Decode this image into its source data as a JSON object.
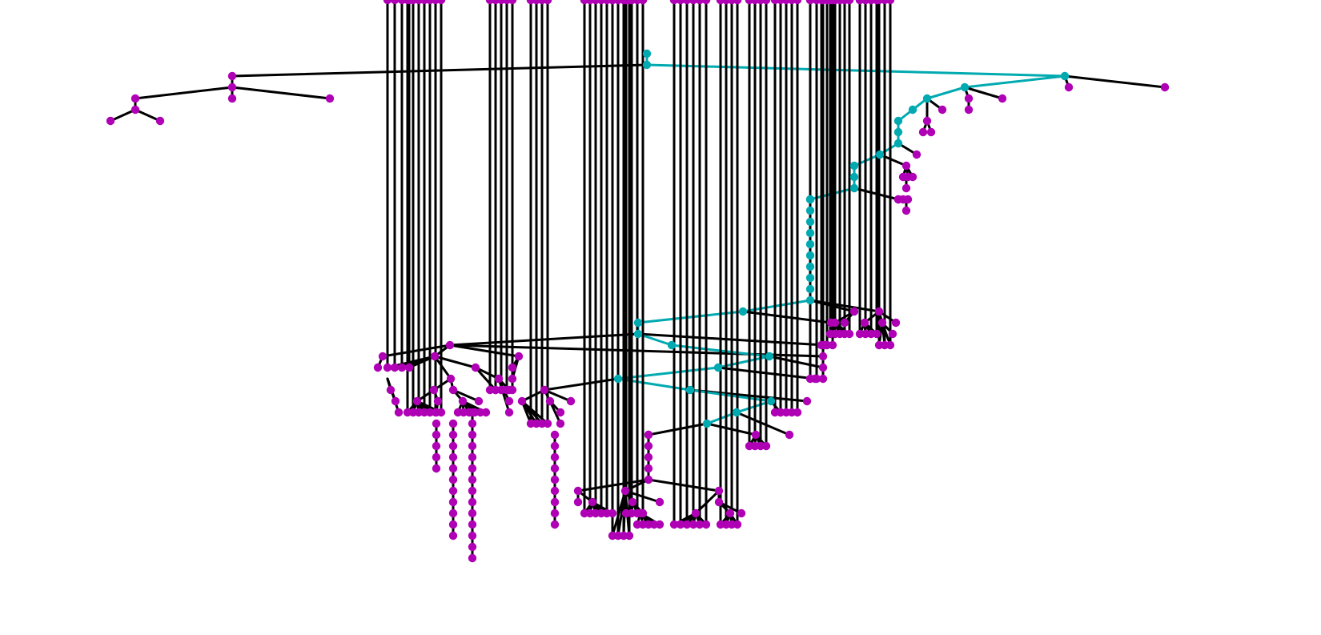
{
  "diagram": {
    "type": "tree",
    "node_color": "#b000b5",
    "path_color": "#00aab0",
    "edge_color": "#000000",
    "background": "#ffffff"
  }
}
